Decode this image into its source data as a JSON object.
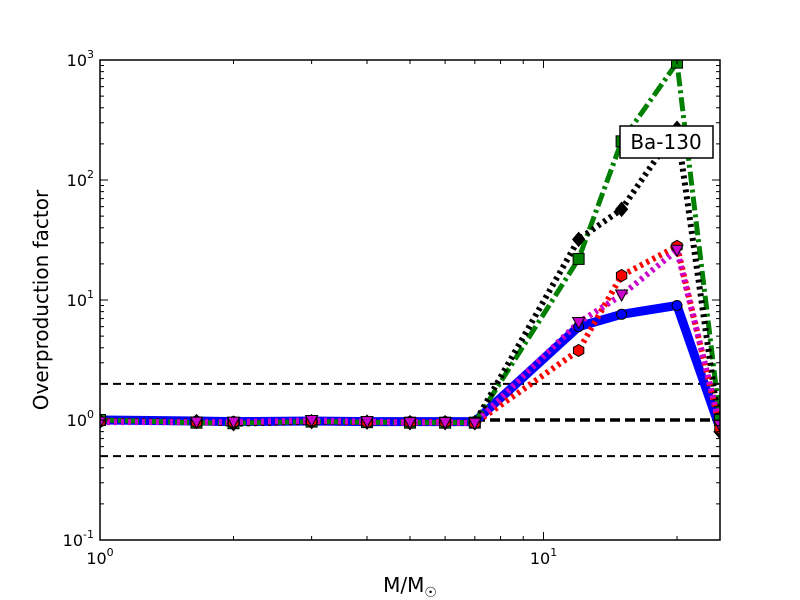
{
  "chart_data": {
    "type": "line",
    "x_scale": "log",
    "y_scale": "log",
    "xlim": [
      1,
      25
    ],
    "ylim": [
      0.1,
      1000
    ],
    "xlabel": "M/M",
    "xlabel_subscript": "☉",
    "ylabel": "Overproduction factor",
    "annotation": "Ba-130",
    "x_ticks": [
      {
        "base": "10",
        "exp": "0",
        "value": 1
      },
      {
        "base": "10",
        "exp": "1",
        "value": 10
      }
    ],
    "y_ticks": [
      {
        "base": "10",
        "exp": "-1",
        "value": 0.1
      },
      {
        "base": "10",
        "exp": "0",
        "value": 1
      },
      {
        "base": "10",
        "exp": "1",
        "value": 10
      },
      {
        "base": "10",
        "exp": "2",
        "value": 100
      },
      {
        "base": "10",
        "exp": "3",
        "value": 1000
      }
    ],
    "reference_lines": [
      {
        "y": 2,
        "color": "#000000",
        "style": "dashed"
      },
      {
        "y": 1,
        "color": "#000000",
        "style": "dashed-thick"
      },
      {
        "y": 0.5,
        "color": "#000000",
        "style": "dashed"
      }
    ],
    "series": [
      {
        "color": "#0000ff",
        "style": "solid",
        "marker": "circle",
        "points": [
          [
            1,
            1
          ],
          [
            1.65,
            0.98
          ],
          [
            2,
            0.97
          ],
          [
            3,
            0.98
          ],
          [
            4,
            0.97
          ],
          [
            5,
            0.97
          ],
          [
            6,
            0.97
          ],
          [
            7,
            0.97
          ],
          [
            12,
            6
          ],
          [
            15,
            7.6
          ],
          [
            20,
            9
          ],
          [
            25,
            0.85
          ]
        ]
      },
      {
        "color": "#008000",
        "style": "dashdot",
        "marker": "square",
        "points": [
          [
            1,
            1
          ],
          [
            1.65,
            0.95
          ],
          [
            2,
            0.94
          ],
          [
            3,
            0.97
          ],
          [
            4,
            0.96
          ],
          [
            5,
            0.95
          ],
          [
            6,
            0.95
          ],
          [
            7,
            0.95
          ],
          [
            12,
            22
          ],
          [
            15,
            210
          ],
          [
            20,
            950
          ],
          [
            25,
            1
          ]
        ]
      },
      {
        "color": "#000000",
        "style": "dotted",
        "marker": "diamond",
        "points": [
          [
            1,
            0.98
          ],
          [
            1.65,
            0.97
          ],
          [
            2,
            0.93
          ],
          [
            3,
            0.97
          ],
          [
            4,
            0.96
          ],
          [
            5,
            0.95
          ],
          [
            6,
            0.95
          ],
          [
            7,
            0.95
          ],
          [
            12,
            32
          ],
          [
            15,
            57
          ],
          [
            20,
            270
          ],
          [
            25,
            0.8
          ]
        ]
      },
      {
        "color": "#ff0000",
        "style": "dotted",
        "marker": "hexagon",
        "points": [
          [
            1,
            0.97
          ],
          [
            1.65,
            0.96
          ],
          [
            2,
            0.96
          ],
          [
            3,
            0.98
          ],
          [
            4,
            0.96
          ],
          [
            5,
            0.96
          ],
          [
            6,
            0.96
          ],
          [
            7,
            0.94
          ],
          [
            12,
            3.8
          ],
          [
            15,
            16
          ],
          [
            20,
            28
          ],
          [
            25,
            0.85
          ]
        ]
      },
      {
        "color": "#cc00cc",
        "style": "dotted",
        "marker": "triangle-down",
        "points": [
          [
            1,
            0.96
          ],
          [
            1.65,
            0.96
          ],
          [
            2,
            0.96
          ],
          [
            3,
            0.99
          ],
          [
            4,
            0.97
          ],
          [
            5,
            0.95
          ],
          [
            6,
            0.95
          ],
          [
            7,
            0.94
          ],
          [
            12,
            6.5
          ],
          [
            15,
            11
          ],
          [
            20,
            26
          ],
          [
            25,
            0.9
          ]
        ]
      }
    ]
  }
}
